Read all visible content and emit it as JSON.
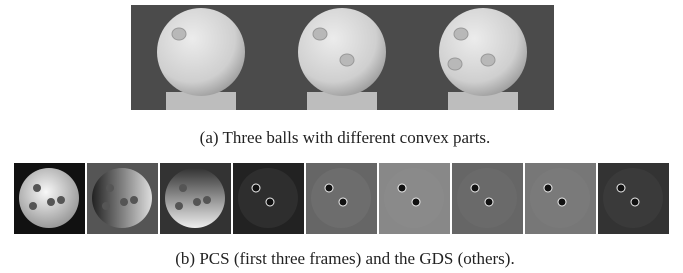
{
  "figure": {
    "caption_a": "(a)  Three balls with different convex parts.",
    "caption_b": "(b)  PCS (first three frames) and the GDS (others)."
  }
}
